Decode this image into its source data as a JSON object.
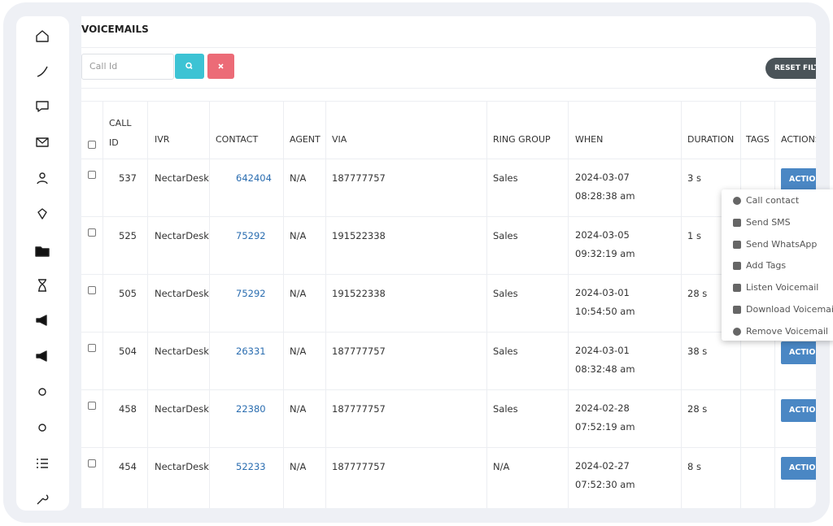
{
  "header": {
    "title": "VOICEMAILS"
  },
  "filter": {
    "placeholder": "Call Id",
    "reset": "RESET FILTERS"
  },
  "table": {
    "columns": [
      "CALL ID",
      "IVR",
      "CONTACT",
      "AGENT",
      "VIA",
      "RING GROUP",
      "WHEN",
      "DURATION",
      "TAGS",
      "ACTIONS"
    ],
    "action_button": "ACTIONS",
    "rows": [
      [
        "537",
        "NectarDesk",
        "642404",
        "N/A",
        "187777757",
        "Sales",
        "2024-03-07 08:28:38 am",
        "3 s"
      ],
      [
        "525",
        "NectarDesk",
        "75292",
        "N/A",
        "191522338",
        "Sales",
        "2024-03-05 09:32:19 am",
        "1 s"
      ],
      [
        "505",
        "NectarDesk",
        "75292",
        "N/A",
        "191522338",
        "Sales",
        "2024-03-01 10:54:50 am",
        "28 s"
      ],
      [
        "504",
        "NectarDesk",
        "26331",
        "N/A",
        "187777757",
        "Sales",
        "2024-03-01 08:32:48 am",
        "38 s"
      ],
      [
        "458",
        "NectarDesk",
        "22380",
        "N/A",
        "187777757",
        "Sales",
        "2024-02-28 07:52:19 am",
        "28 s"
      ],
      [
        "454",
        "NectarDesk",
        "52233",
        "N/A",
        "187777757",
        "N/A",
        "2024-02-27 07:52:30 am",
        "8 s"
      ]
    ]
  },
  "menu": {
    "items": [
      "Call contact",
      "Send SMS",
      "Send WhatsApp",
      "Add Tags",
      "Listen Voicemail",
      "Download Voicemail",
      "Remove Voicemail"
    ]
  }
}
